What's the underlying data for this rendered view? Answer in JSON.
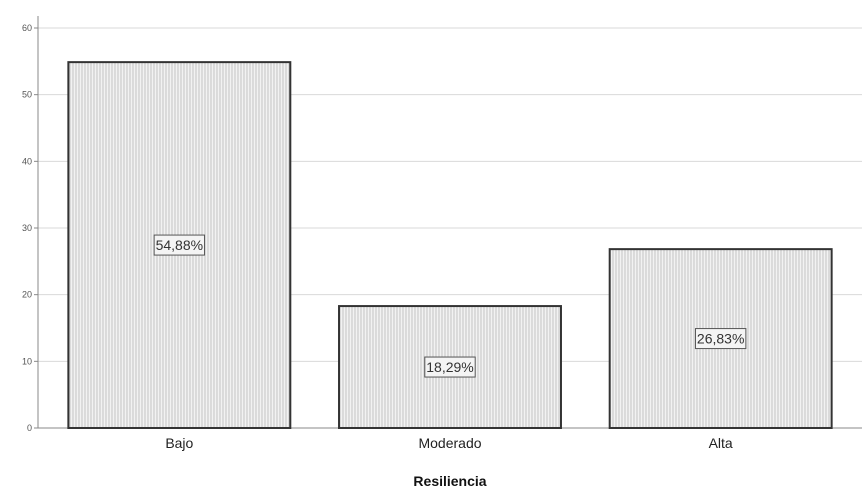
{
  "chart_data": {
    "type": "bar",
    "categories": [
      "Bajo",
      "Moderado",
      "Alta"
    ],
    "values": [
      54.88,
      18.29,
      26.83
    ],
    "data_labels": [
      "54,88%",
      "18,29%",
      "26,83%"
    ],
    "xlabel": "Resiliencia",
    "ylabel": "",
    "ylim": [
      0,
      60
    ],
    "yticks": [
      0,
      10,
      20,
      30,
      40,
      50,
      60
    ],
    "ytick_labels": [
      "0",
      "10",
      "20",
      "30",
      "40",
      "50",
      "60"
    ],
    "grid": true,
    "legend": "none",
    "colors": {
      "bar_fill": "#f2f2f2",
      "bar_hatch": "#b8b8b8",
      "bar_stroke": "#333333",
      "grid": "#d9d9d9",
      "axis": "#888888"
    }
  }
}
